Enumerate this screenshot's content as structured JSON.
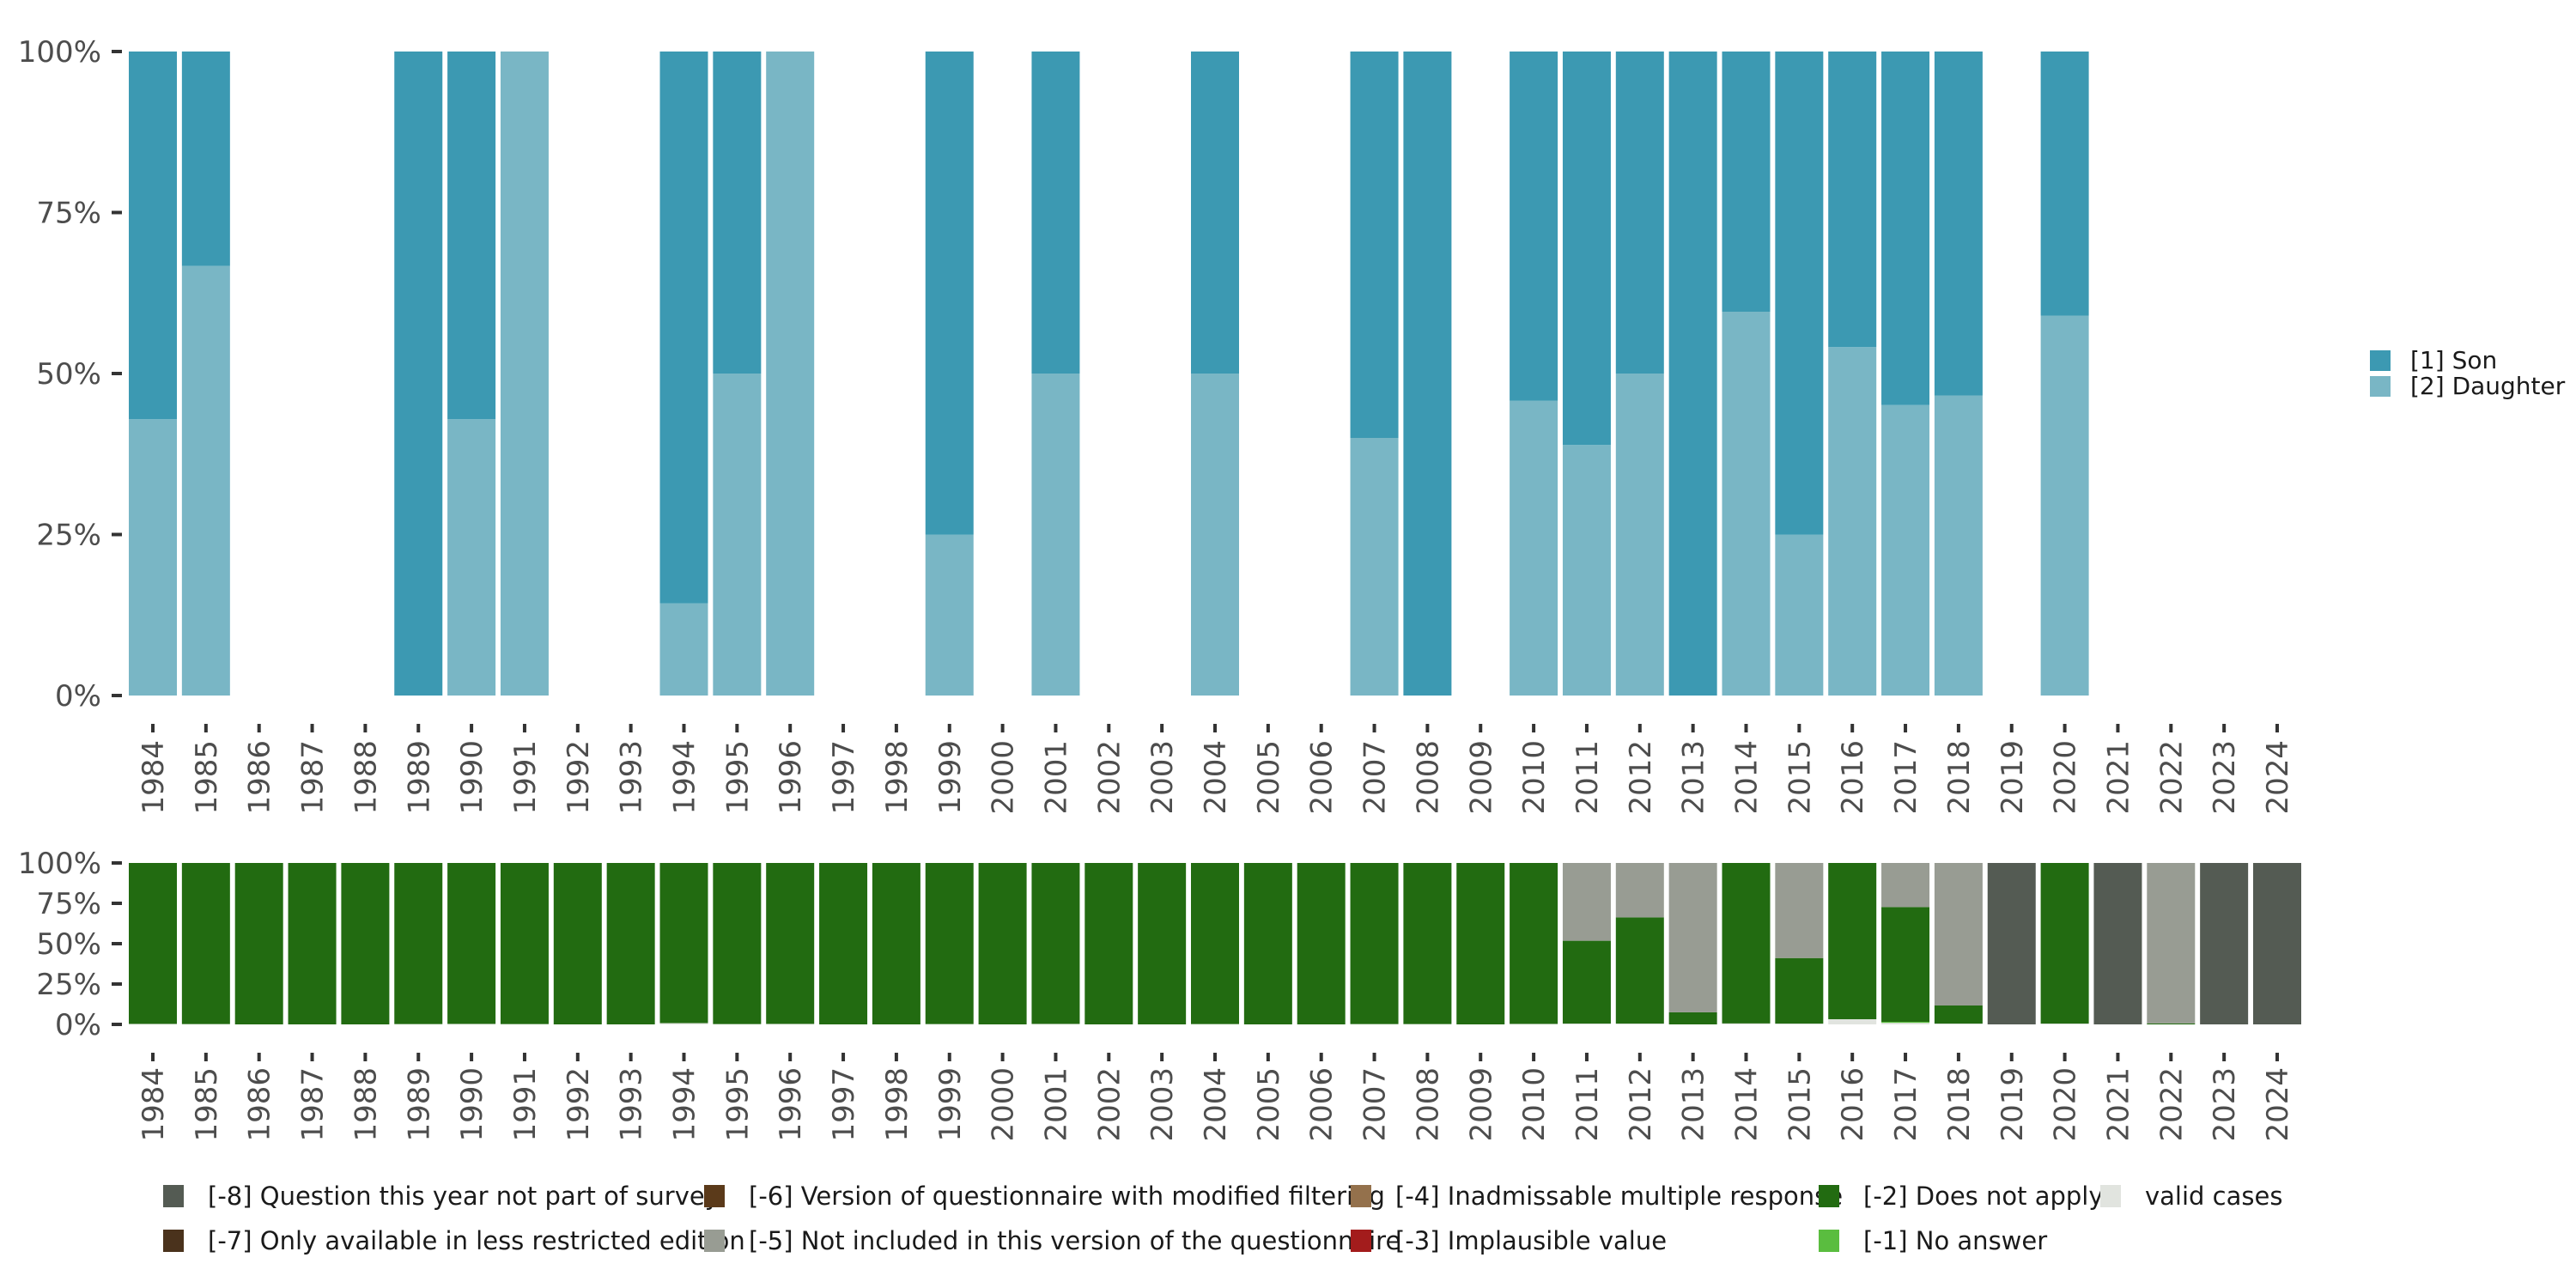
{
  "chart_data": [
    {
      "type": "bar",
      "stacked": true,
      "normalized": true,
      "title": "",
      "xlabel": "",
      "ylabel": "",
      "ylim": [
        0,
        100
      ],
      "y_ticks": [
        "0%",
        "25%",
        "50%",
        "75%",
        "100%"
      ],
      "y_tick_values": [
        0,
        25,
        50,
        75,
        100
      ],
      "grid": false,
      "legend_position": "right",
      "categories": [
        "1984",
        "1985",
        "1986",
        "1987",
        "1988",
        "1989",
        "1990",
        "1991",
        "1992",
        "1993",
        "1994",
        "1995",
        "1996",
        "1997",
        "1998",
        "1999",
        "2000",
        "2001",
        "2002",
        "2003",
        "2004",
        "2005",
        "2006",
        "2007",
        "2008",
        "2009",
        "2010",
        "2011",
        "2012",
        "2013",
        "2014",
        "2015",
        "2016",
        "2017",
        "2018",
        "2019",
        "2020",
        "2021",
        "2022",
        "2023",
        "2024"
      ],
      "series": [
        {
          "name": "[1] Son",
          "color": "#3c99b2",
          "values": [
            57.1,
            33.3,
            null,
            null,
            null,
            100,
            57.1,
            0,
            null,
            null,
            85.7,
            50,
            0,
            null,
            null,
            75,
            null,
            50,
            null,
            null,
            50,
            null,
            null,
            60,
            100,
            null,
            54.2,
            61.1,
            50,
            100,
            40.4,
            75,
            45.9,
            54.9,
            53.4,
            null,
            41.0,
            null,
            null,
            null,
            null
          ]
        },
        {
          "name": "[2] Daughter",
          "color": "#79b6c5",
          "values": [
            42.9,
            66.7,
            null,
            null,
            null,
            0,
            42.9,
            100,
            null,
            null,
            14.3,
            50,
            100,
            null,
            null,
            25,
            null,
            50,
            null,
            null,
            50,
            null,
            null,
            40,
            0,
            null,
            45.8,
            38.9,
            50,
            0,
            59.6,
            25,
            54.1,
            45.1,
            46.6,
            null,
            59.0,
            null,
            null,
            null,
            null
          ]
        }
      ]
    },
    {
      "type": "bar",
      "stacked": true,
      "normalized": true,
      "title": "",
      "xlabel": "",
      "ylabel": "",
      "ylim": [
        0,
        100
      ],
      "y_ticks": [
        "0%",
        "25%",
        "50%",
        "75%",
        "100%"
      ],
      "y_tick_values": [
        0,
        25,
        50,
        75,
        100
      ],
      "grid": false,
      "legend_position": "bottom",
      "categories": [
        "1984",
        "1985",
        "1986",
        "1987",
        "1988",
        "1989",
        "1990",
        "1991",
        "1992",
        "1993",
        "1994",
        "1995",
        "1996",
        "1997",
        "1998",
        "1999",
        "2000",
        "2001",
        "2002",
        "2003",
        "2004",
        "2005",
        "2006",
        "2007",
        "2008",
        "2009",
        "2010",
        "2011",
        "2012",
        "2013",
        "2014",
        "2015",
        "2016",
        "2017",
        "2018",
        "2019",
        "2020",
        "2021",
        "2022",
        "2023",
        "2024"
      ],
      "series": [
        {
          "name": "valid cases",
          "color": "#e1e4df",
          "values": [
            0.3,
            0.2,
            0,
            0,
            0,
            0.2,
            0.3,
            0.2,
            0,
            0,
            0.8,
            0.2,
            0.3,
            0,
            0,
            0.2,
            0,
            0.3,
            0,
            0,
            0.2,
            0,
            0,
            0.2,
            0.2,
            0,
            0.3,
            0.5,
            0.5,
            0,
            0.6,
            0.5,
            3.2,
            1.0,
            0.5,
            0,
            0.5,
            0,
            0,
            0,
            0
          ]
        },
        {
          "name": "[-1] No answer",
          "color": "#5abd3f",
          "values": [
            0,
            0,
            0,
            0,
            0,
            0,
            0,
            0,
            0,
            0,
            0,
            0,
            0,
            0,
            0,
            0,
            0,
            0,
            0,
            0,
            0,
            0,
            0,
            0,
            0,
            0,
            0,
            0,
            0,
            0,
            0,
            0,
            0,
            0.6,
            0,
            0,
            0,
            0,
            0,
            0,
            0
          ]
        },
        {
          "name": "[-2] Does not apply",
          "color": "#226b11",
          "values": [
            99.7,
            99.8,
            100,
            100,
            100,
            99.8,
            99.7,
            99.8,
            100,
            100,
            99.2,
            99.8,
            99.7,
            100,
            100,
            99.8,
            100,
            99.7,
            100,
            100,
            99.8,
            100,
            100,
            99.8,
            99.8,
            100,
            99.7,
            51.3,
            65.8,
            7.5,
            99.4,
            40.6,
            96.8,
            71.1,
            11.2,
            0,
            99.5,
            0,
            0.6,
            0,
            0
          ]
        },
        {
          "name": "[-3] Implausible value",
          "color": "#a31c1c",
          "values": []
        },
        {
          "name": "[-4] Inadmissable multiple response",
          "color": "#94714c",
          "values": []
        },
        {
          "name": "[-5] Not included in this version of the questionnaire",
          "color": "#989c93",
          "values": [
            0,
            0,
            0,
            0,
            0,
            0,
            0,
            0,
            0,
            0,
            0,
            0,
            0,
            0,
            0,
            0,
            0,
            0,
            0,
            0,
            0,
            0,
            0,
            0,
            0,
            0,
            0,
            48.2,
            33.7,
            92.5,
            0,
            58.9,
            0,
            27.3,
            88.3,
            0,
            0,
            0,
            99.4,
            0,
            0
          ]
        },
        {
          "name": "[-6] Version of questionnaire with modified filtering",
          "color": "#5b3a1a",
          "values": []
        },
        {
          "name": "[-7] Only available in less restricted edition",
          "color": "#4a321c",
          "values": []
        },
        {
          "name": "[-8] Question this year not part of survey",
          "color": "#545b53",
          "values": [
            0,
            0,
            0,
            0,
            0,
            0,
            0,
            0,
            0,
            0,
            0,
            0,
            0,
            0,
            0,
            0,
            0,
            0,
            0,
            0,
            0,
            0,
            0,
            0,
            0,
            0,
            0,
            0,
            0,
            0,
            0,
            0,
            0,
            0,
            0,
            100,
            0,
            100,
            0,
            100,
            100
          ]
        }
      ]
    }
  ],
  "legend_top": [
    {
      "label": "[1] Son",
      "color": "#3c99b2"
    },
    {
      "label": "[2] Daughter",
      "color": "#79b6c5"
    }
  ],
  "legend_bottom": [
    {
      "label": "[-8] Question this year not part of survey",
      "color": "#545b53"
    },
    {
      "label": "[-7] Only available in less restricted edition",
      "color": "#4a321c"
    },
    {
      "label": "[-6] Version of questionnaire with modified filtering",
      "color": "#5b3a1a"
    },
    {
      "label": "[-5] Not included in this version of the questionnaire",
      "color": "#989c93"
    },
    {
      "label": "[-4] Inadmissable multiple response",
      "color": "#94714c"
    },
    {
      "label": "[-3] Implausible value",
      "color": "#a31c1c"
    },
    {
      "label": "[-2] Does not apply",
      "color": "#226b11"
    },
    {
      "label": "[-1] No answer",
      "color": "#5abd3f"
    },
    {
      "label": "valid cases",
      "color": "#e1e4df"
    }
  ]
}
